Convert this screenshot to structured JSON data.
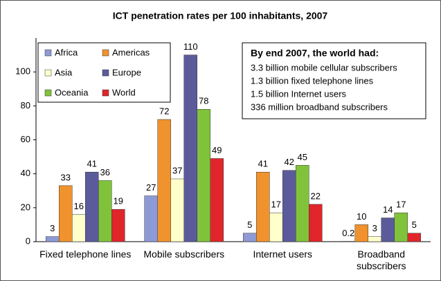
{
  "chart_data": {
    "type": "bar",
    "title": "ICT penetration rates per 100 inhabitants, 2007",
    "categories": [
      "Fixed telephone lines",
      "Mobile subscribers",
      "Internet users",
      "Broadband subscribers"
    ],
    "series": [
      {
        "name": "Africa",
        "color": "#8e9ad6",
        "values": [
          3,
          27,
          5,
          0.2
        ]
      },
      {
        "name": "Americas",
        "color": "#f0922e",
        "values": [
          33,
          72,
          41,
          10
        ]
      },
      {
        "name": "Asia",
        "color": "#ffffcc",
        "values": [
          16,
          37,
          17,
          3
        ]
      },
      {
        "name": "Europe",
        "color": "#5b5b9c",
        "values": [
          41,
          110,
          42,
          14
        ]
      },
      {
        "name": "Oceania",
        "color": "#80c33a",
        "values": [
          36,
          78,
          45,
          17
        ]
      },
      {
        "name": "World",
        "color": "#e0262b",
        "values": [
          19,
          49,
          22,
          5
        ]
      }
    ],
    "ylim": [
      0,
      120
    ],
    "yticks": [
      0,
      20,
      40,
      60,
      80,
      100
    ],
    "annotation": {
      "title": "By end 2007, the world had:",
      "lines": [
        "3.3 billion mobile cellular subscribers",
        "1.3 billion fixed telephone lines",
        "1.5 billion Internet users",
        "336 million broadband subscribers"
      ]
    }
  }
}
